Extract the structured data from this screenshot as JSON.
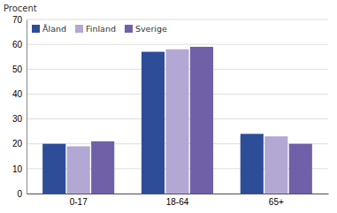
{
  "chart_data": {
    "type": "bar",
    "ylabel": "Procent",
    "categories": [
      "0-17",
      "18-64",
      "65+"
    ],
    "series": [
      {
        "name": "Åland",
        "color": "#2E4D99",
        "values": [
          20,
          57,
          24
        ]
      },
      {
        "name": "Finland",
        "color": "#B3A8D4",
        "values": [
          19,
          58,
          23
        ]
      },
      {
        "name": "Sverige",
        "color": "#7060A8",
        "values": [
          21,
          59,
          20
        ]
      }
    ],
    "ylim": [
      0,
      70
    ],
    "yticks": [
      0,
      10,
      20,
      30,
      40,
      50,
      60,
      70
    ],
    "grid": true,
    "legend": "upper left"
  }
}
